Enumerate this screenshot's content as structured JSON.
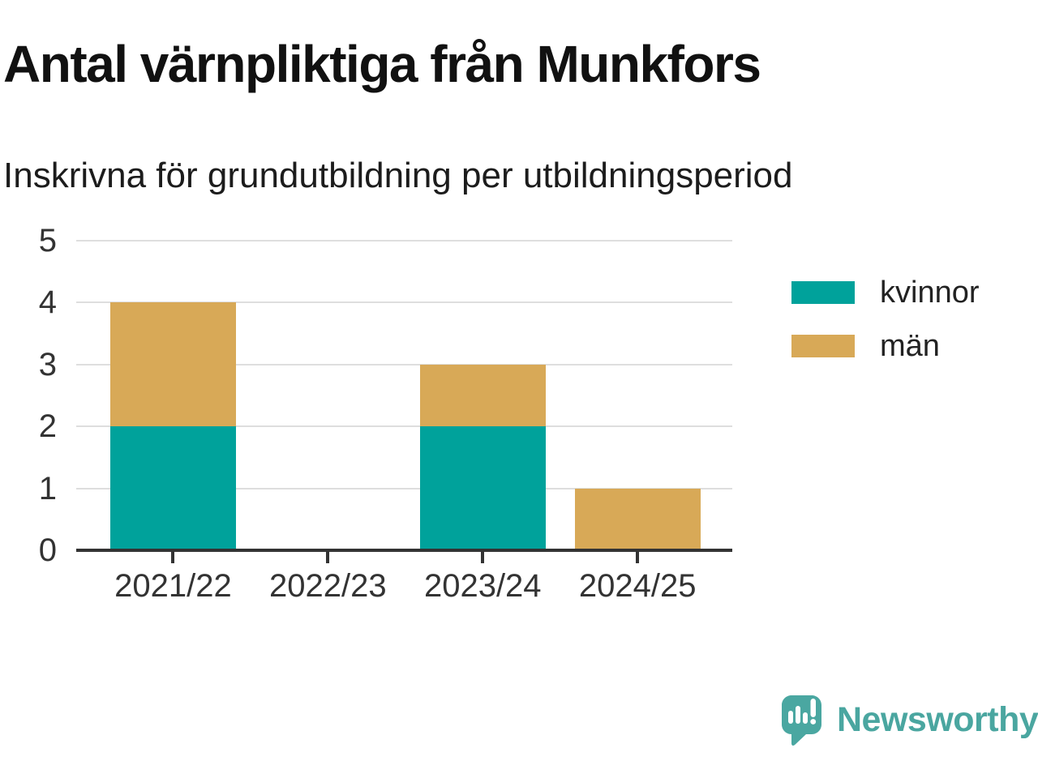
{
  "chart_data": {
    "type": "bar",
    "stacked": true,
    "title": "Antal värnpliktiga från Munkfors",
    "subtitle": "Inskrivna för grundutbildning per utbildningsperiod",
    "categories": [
      "2021/22",
      "2022/23",
      "2023/24",
      "2024/25"
    ],
    "series": [
      {
        "name": "kvinnor",
        "color": "#00a29b",
        "values": [
          2,
          0,
          2,
          0
        ]
      },
      {
        "name": "män",
        "color": "#d8a957",
        "values": [
          2,
          0,
          1,
          1
        ]
      }
    ],
    "totals": [
      4,
      0,
      3,
      1
    ],
    "ylim": [
      0,
      5
    ],
    "yticks": [
      0,
      1,
      2,
      3,
      4,
      5
    ],
    "grid": true,
    "legend_position": "right"
  },
  "colors": {
    "kvinnor_teal": "#00a29b",
    "man_tan": "#d8a957",
    "gridline": "#dedede",
    "axis": "#333333",
    "tick_label": "#333333",
    "title_text": "#111111",
    "brand_teal": "#4aa6a0"
  },
  "footer": {
    "brand": "Newsworthy",
    "logo_icon": "newsworthy-speech-bubble-bar-chart-icon"
  }
}
